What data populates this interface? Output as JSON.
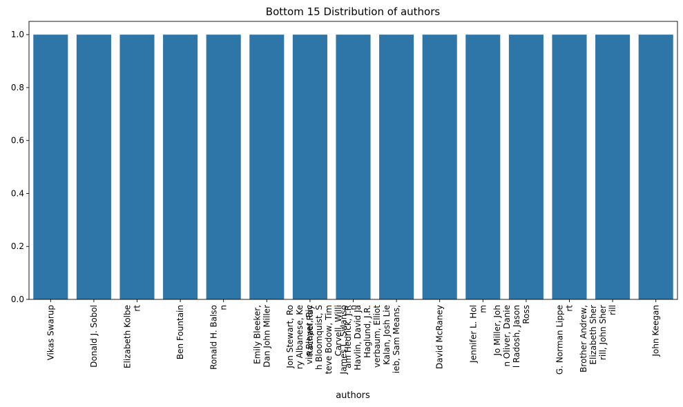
{
  "chart_data": {
    "type": "bar",
    "title": "Bottom 15 Distribution of authors",
    "xlabel": "authors",
    "ylabel": "",
    "ylim": [
      0,
      1.05
    ],
    "yticks": [
      "0.0",
      "0.2",
      "0.4",
      "0.6",
      "0.8",
      "1.0"
    ],
    "bar_color": "#2e75a8",
    "grid": false,
    "categories": [
      [
        "Vikas Swarup"
      ],
      [
        "Donald J. Sobol"
      ],
      [
        "Elizabeth Kolbe",
        "rt"
      ],
      [
        "Ben Fountain"
      ],
      [
        "Ronald H. Balso",
        "n"
      ],
      [
        "Emily Bleeker,",
        "Dan John Miller"
      ],
      [
        "Rachael Ray"
      ],
      [
        "James L. Swanso",
        "n"
      ],
      [
        "Jon Stewart, Ro",
        "ry Albanese, Ke",
        "vin Bleyer, Ric",
        "h Bloomquist, S",
        "teve Bodow, Tim",
        "Carvell, Willi",
        "am Hedrick, J.R",
        "Havlin, David Ja",
        "Haglund, J.R.",
        "verbaum, Elliot",
        "Kalan, Josh Lie",
        "ieb, Sam Means,"
      ],
      [
        "David McRaney"
      ],
      [
        "Jennifer L. Hol",
        "m"
      ],
      [
        "Jo Miller, Joh",
        "n Oliver, Danie",
        "l Radosh, Jason",
        "Ross"
      ],
      [
        "G. Norman Lippe",
        "rt"
      ],
      [
        "Brother Andrew,",
        "Elizabeth Sher",
        "rill, John Sher",
        "rill"
      ],
      [
        "John Keegan"
      ]
    ],
    "values": [
      1,
      1,
      1,
      1,
      1,
      1,
      1,
      1,
      1,
      1,
      1,
      1,
      1,
      1,
      1
    ]
  }
}
